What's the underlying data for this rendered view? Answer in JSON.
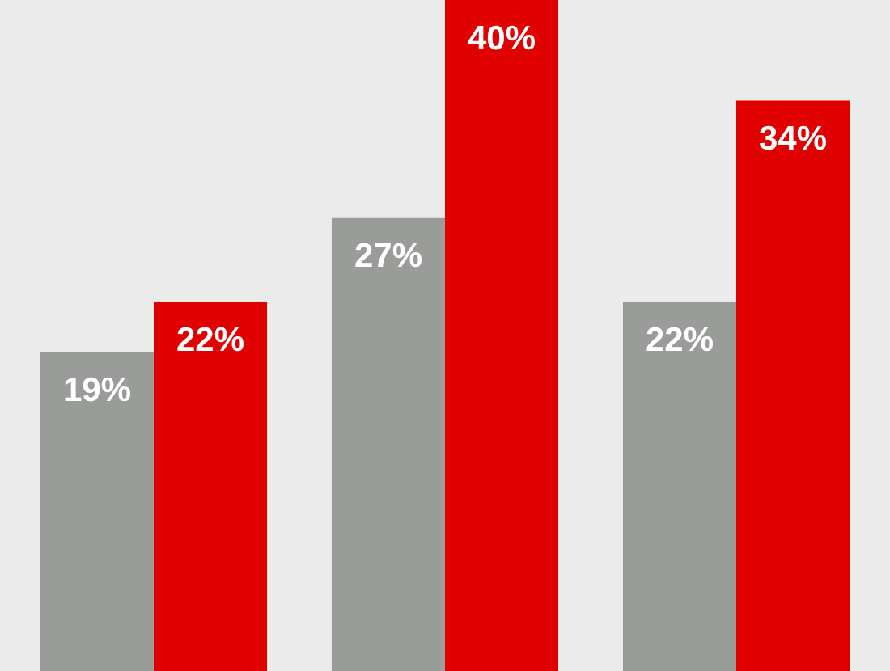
{
  "chart_data": {
    "type": "bar",
    "categories": [
      null,
      null,
      null
    ],
    "series": [
      {
        "color": "#9a9c99",
        "values": [
          19,
          27,
          22
        ],
        "value_labels": [
          "19%",
          "27%",
          "22%"
        ]
      },
      {
        "color": "#e10000",
        "values": [
          22,
          40,
          34
        ],
        "value_labels": [
          "22%",
          "40%",
          "34%"
        ]
      }
    ],
    "legend": false
  }
}
